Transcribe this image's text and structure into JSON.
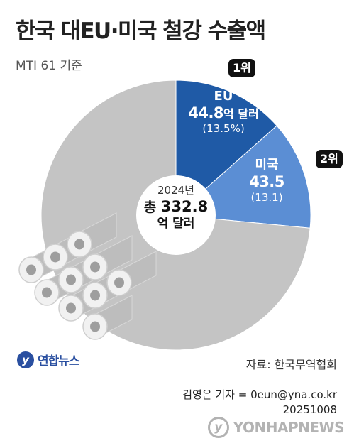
{
  "title": "한국 대EU·미국 철강 수출액",
  "subtitle": "MTI 61 기준",
  "chart_data": {
    "type": "pie",
    "total": {
      "year": "2024년",
      "label": "총",
      "value": 332.8,
      "value_text": "332.8",
      "unit": "억 달러"
    },
    "slices": [
      {
        "name": "EU",
        "value": 44.8,
        "value_text": "44.8",
        "unit": "억 달러",
        "percent_text": "(13.5%)",
        "rank": "1위",
        "color": "#1f5aa6"
      },
      {
        "name": "미국",
        "value": 43.5,
        "value_text": "43.5",
        "unit": "",
        "percent_text": "(13.1)",
        "rank": "2위",
        "color": "#5b8ed4"
      },
      {
        "name": "",
        "value": 244.5,
        "color": "#c4c4c4"
      }
    ]
  },
  "source": "자료: 한국무역협회",
  "logo": {
    "mark": "y",
    "text": "연합뉴스"
  },
  "credit": {
    "reporter": "김영은 기자 = 0eun@yna.co.kr",
    "date": "20251008"
  },
  "watermark": "YONHAPNEWS",
  "icons": {
    "illustration": "steel-coil-rolls-icon"
  }
}
